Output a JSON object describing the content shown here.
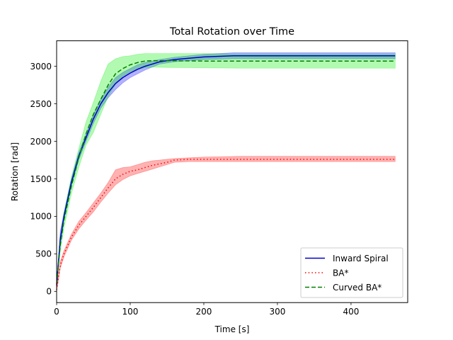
{
  "chart_data": {
    "type": "line",
    "title": "Total Rotation over Time",
    "xlabel": "Time [s]",
    "ylabel": "Rotation [rad]",
    "xlim": [
      0,
      477
    ],
    "ylim": [
      -150,
      3340
    ],
    "xticks": [
      0,
      100,
      200,
      300,
      400
    ],
    "yticks": [
      0,
      500,
      1000,
      1500,
      2000,
      2500,
      3000
    ],
    "grid": false,
    "legend_position": "lower-right",
    "series": [
      {
        "name": "Inward Spiral",
        "color": "#0000cc",
        "band_color": "#0000ff",
        "style": "solid",
        "x": [
          0,
          5,
          10,
          20,
          30,
          40,
          50,
          60,
          70,
          80,
          90,
          100,
          110,
          120,
          130,
          140,
          160,
          200,
          240,
          300,
          400,
          460
        ],
        "y": [
          80,
          700,
          1000,
          1450,
          1800,
          2050,
          2300,
          2500,
          2650,
          2770,
          2850,
          2910,
          2960,
          3000,
          3030,
          3060,
          3090,
          3125,
          3140,
          3140,
          3140,
          3140
        ],
        "lower": [
          60,
          600,
          950,
          1400,
          1750,
          2000,
          2240,
          2440,
          2580,
          2690,
          2780,
          2850,
          2900,
          2950,
          2990,
          3030,
          3060,
          3090,
          3100,
          3100,
          3100,
          3100
        ],
        "upper": [
          100,
          800,
          1050,
          1500,
          1850,
          2100,
          2360,
          2560,
          2720,
          2850,
          2920,
          2970,
          3020,
          3050,
          3070,
          3090,
          3120,
          3160,
          3180,
          3180,
          3180,
          3180
        ]
      },
      {
        "name": "BA*",
        "color": "#ff0000",
        "band_color": "#ff0000",
        "style": "dotted",
        "x": [
          0,
          5,
          10,
          20,
          30,
          40,
          50,
          60,
          70,
          80,
          90,
          100,
          110,
          120,
          130,
          140,
          150,
          160,
          180,
          200,
          250,
          300,
          400,
          460
        ],
        "y": [
          20,
          350,
          500,
          720,
          880,
          1000,
          1120,
          1250,
          1380,
          1500,
          1560,
          1600,
          1620,
          1650,
          1680,
          1700,
          1720,
          1750,
          1760,
          1760,
          1760,
          1760,
          1760,
          1760
        ],
        "lower": [
          0,
          310,
          460,
          680,
          830,
          950,
          1060,
          1190,
          1310,
          1420,
          1490,
          1540,
          1570,
          1600,
          1630,
          1660,
          1690,
          1720,
          1730,
          1730,
          1730,
          1730,
          1730,
          1730
        ],
        "upper": [
          40,
          400,
          540,
          760,
          930,
          1050,
          1180,
          1310,
          1450,
          1620,
          1650,
          1660,
          1690,
          1720,
          1740,
          1750,
          1760,
          1770,
          1780,
          1790,
          1800,
          1800,
          1800,
          1800
        ]
      },
      {
        "name": "Curved BA*",
        "color": "#008000",
        "band_color": "#00ee00",
        "style": "dashed",
        "x": [
          0,
          5,
          10,
          20,
          30,
          40,
          50,
          60,
          70,
          80,
          90,
          100,
          110,
          120,
          130,
          150,
          200,
          250,
          300,
          400,
          460
        ],
        "y": [
          100,
          620,
          950,
          1400,
          1780,
          2100,
          2360,
          2560,
          2750,
          2900,
          2970,
          3020,
          3050,
          3070,
          3075,
          3075,
          3070,
          3070,
          3070,
          3070,
          3070
        ],
        "lower": [
          80,
          540,
          850,
          1300,
          1650,
          1950,
          2120,
          2360,
          2600,
          2760,
          2870,
          2930,
          2960,
          2980,
          2990,
          2985,
          2980,
          2975,
          2975,
          2975,
          2975
        ],
        "upper": [
          120,
          700,
          1050,
          1520,
          1900,
          2260,
          2520,
          2800,
          3030,
          3100,
          3130,
          3140,
          3160,
          3170,
          3170,
          3170,
          3170,
          3165,
          3165,
          3165,
          3165
        ]
      }
    ]
  }
}
